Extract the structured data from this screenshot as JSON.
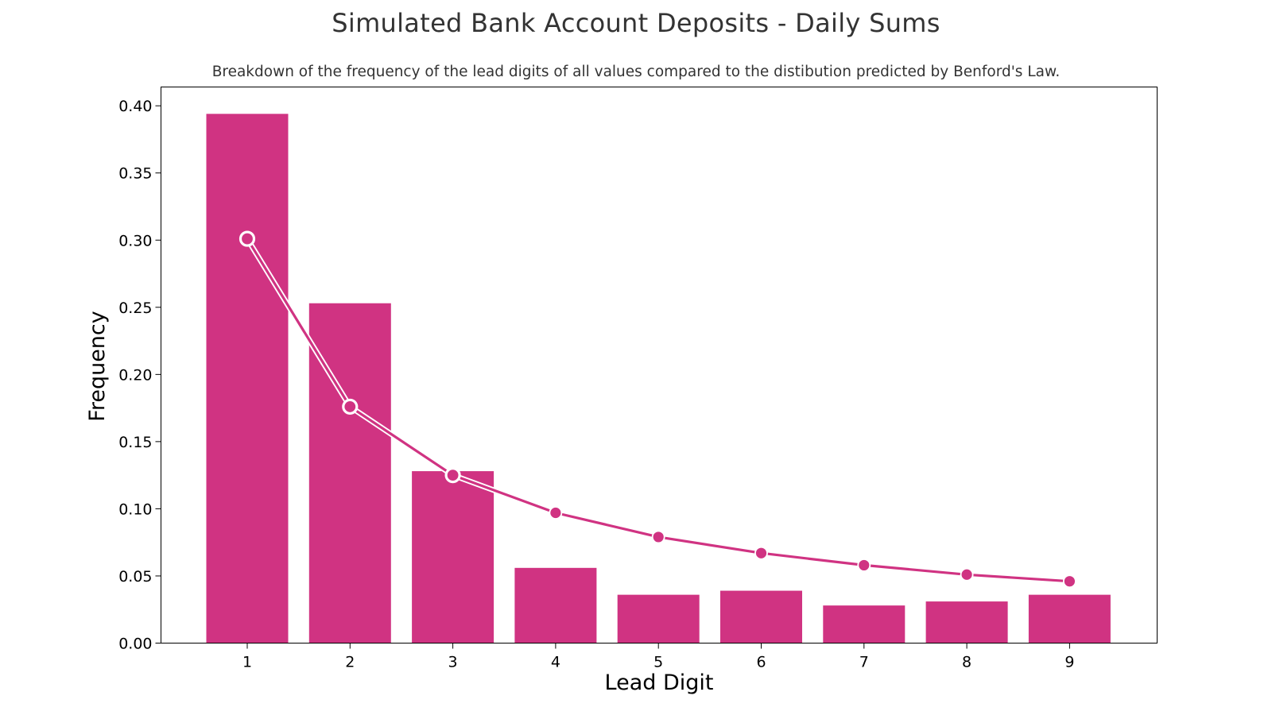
{
  "chart_data": {
    "type": "bar",
    "title": "Simulated Bank Account Deposits - Daily Sums",
    "subtitle": "Breakdown of the frequency of the lead digits of all values compared to the distibution predicted by Benford's Law.",
    "xlabel": "Lead Digit",
    "ylabel": "Frequency",
    "categories": [
      "1",
      "2",
      "3",
      "4",
      "5",
      "6",
      "7",
      "8",
      "9"
    ],
    "series": [
      {
        "type": "bar",
        "values": [
          0.394,
          0.253,
          0.128,
          0.056,
          0.036,
          0.039,
          0.028,
          0.031,
          0.036
        ]
      },
      {
        "type": "line",
        "values": [
          0.301,
          0.176,
          0.125,
          0.097,
          0.079,
          0.067,
          0.058,
          0.051,
          0.046
        ]
      }
    ],
    "ylim": [
      0.0,
      0.414
    ],
    "yticks": [
      "0.00",
      "0.05",
      "0.10",
      "0.15",
      "0.20",
      "0.25",
      "0.30",
      "0.35",
      "0.40"
    ],
    "grid": false,
    "colors": {
      "bar": "#d03382",
      "line": "#d03382",
      "highlight_marker": "#ffffff"
    },
    "highlighted_points": [
      "1",
      "2",
      "3"
    ]
  }
}
